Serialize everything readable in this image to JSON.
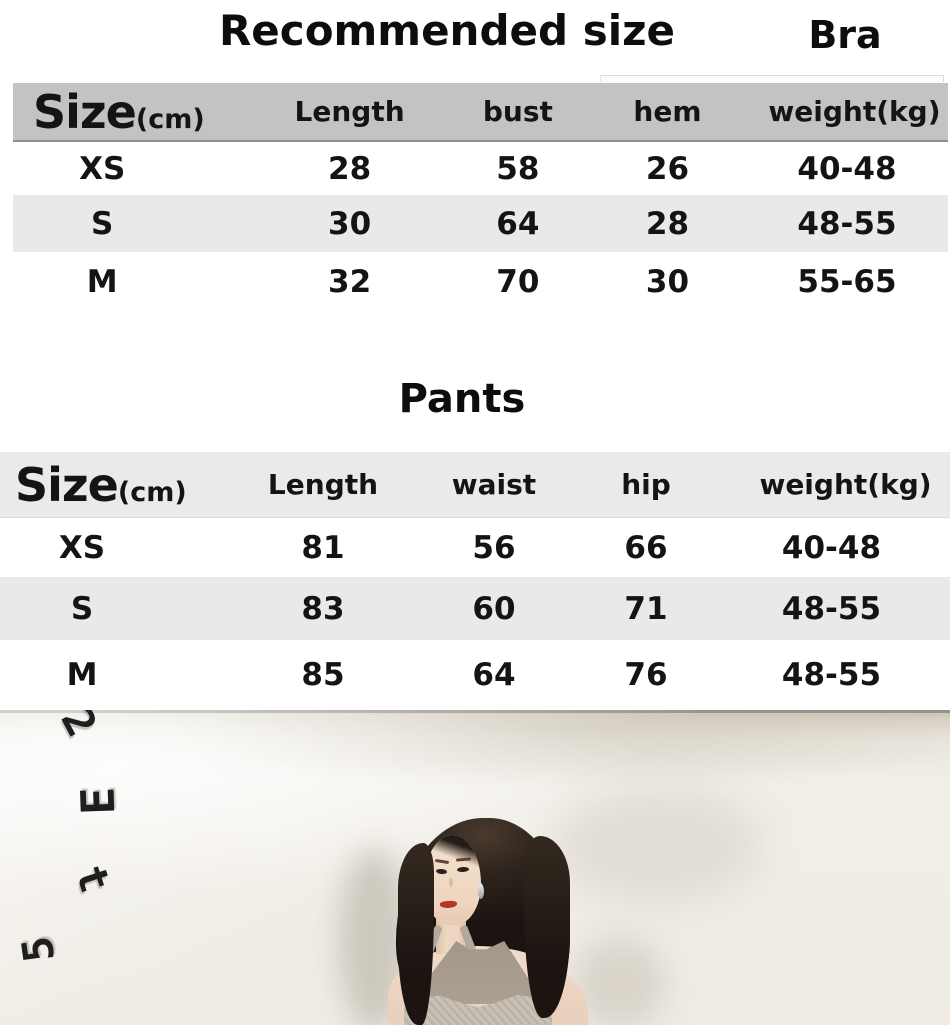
{
  "header": {
    "title": "Recommended size",
    "category_label": "Bra"
  },
  "bra_table": {
    "size_label": "Size",
    "size_unit": "(cm)",
    "columns": [
      "Length",
      "bust",
      "hem",
      "weight(kg)"
    ],
    "rows": [
      [
        "XS",
        "28",
        "58",
        "26",
        "40-48"
      ],
      [
        "S",
        "30",
        "64",
        "28",
        "48-55"
      ],
      [
        "M",
        "32",
        "70",
        "30",
        "55-65"
      ]
    ]
  },
  "pants_section": {
    "title": "Pants"
  },
  "pants_table": {
    "size_label": "Size",
    "size_unit": "(cm)",
    "columns": [
      "Length",
      "waist",
      "hip",
      "weight(kg)"
    ],
    "rows": [
      [
        "XS",
        "81",
        "56",
        "66",
        "40-48"
      ],
      [
        "S",
        "83",
        "60",
        "71",
        "48-55"
      ],
      [
        "M",
        "85",
        "64",
        "76",
        "48-55"
      ]
    ]
  },
  "photo": {
    "wall_glyphs": [
      "2",
      "E",
      "t",
      "5"
    ]
  },
  "colors": {
    "bra_header_bg": "#c3c3c3",
    "alt_row_bg": "#e9e9e9",
    "pants_header_bg": "#eaeaea",
    "text_color": "#111111"
  }
}
